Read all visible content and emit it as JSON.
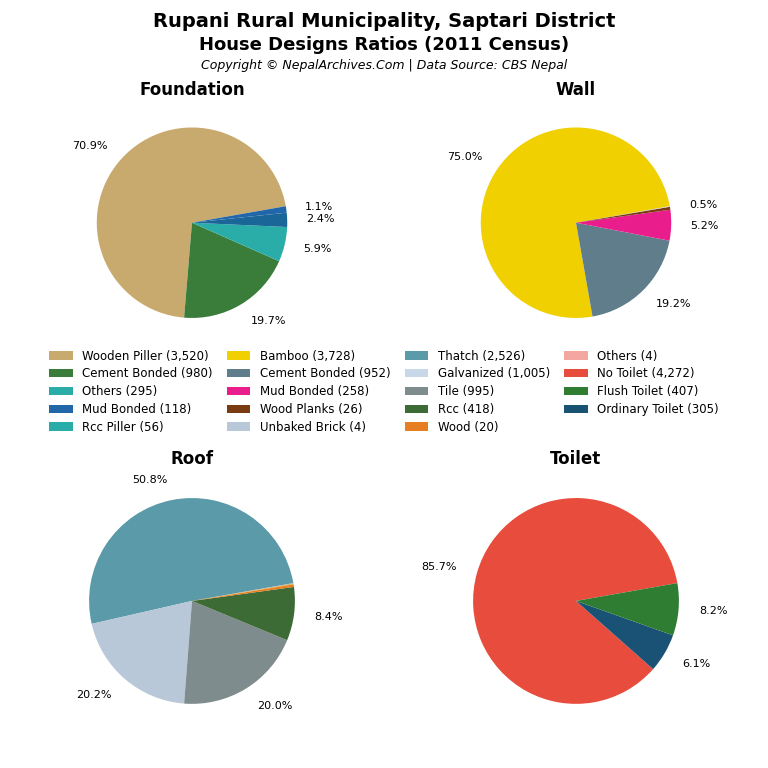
{
  "title": "Rupani Rural Municipality, Saptari District",
  "subtitle": "House Designs Ratios (2011 Census)",
  "caption": "Copyright © NepalArchives.Com | Data Source: CBS Nepal",
  "legend": "center",
  "legend_entries": [
    {
      "name": "Wooden Piller (3,520)",
      "color": "#c8a96e"
    },
    {
      "name": "Cement Bonded (980)",
      "color": "#3a7d3a"
    },
    {
      "name": "Others (295)",
      "color": "#2aada8"
    },
    {
      "name": "Mud Bonded (118)",
      "color": "#2266aa"
    },
    {
      "name": "Rcc Piller (56)",
      "color": "#2aada8"
    },
    {
      "name": "Bamboo (3,728)",
      "color": "#f0d000"
    },
    {
      "name": "Cement Bonded (952)",
      "color": "#607d8b"
    },
    {
      "name": "Mud Bonded (258)",
      "color": "#e91e8c"
    },
    {
      "name": "Wood Planks (26)",
      "color": "#7a3b10"
    },
    {
      "name": "Unbaked Brick (4)",
      "color": "#b8c8d8"
    },
    {
      "name": "Thatch (2,526)",
      "color": "#5b9aa8"
    },
    {
      "name": "Galvanized (1,005)",
      "color": "#c8d8e8"
    },
    {
      "name": "Tile (995)",
      "color": "#7f8c8d"
    },
    {
      "name": "Rcc (418)",
      "color": "#3d6b35"
    },
    {
      "name": "Wood (20)",
      "color": "#e67e22"
    },
    {
      "name": "Others (4)",
      "color": "#f4a6a0"
    },
    {
      "name": "No Toilet (4,272)",
      "color": "#e74c3c"
    },
    {
      "name": "Flush Toilet (407)",
      "color": "#2e7d32"
    },
    {
      "name": "Ordinary Toilet (305)",
      "color": "#1a5276"
    }
  ],
  "chart_data": [
    {
      "type": "pie",
      "title": "Foundation",
      "values": [
        70.9,
        19.7,
        5.9,
        2.4,
        1.1
      ],
      "value_labels": [
        "70.9%",
        "19.7%",
        "5.9%",
        "2.4%",
        "1.1%"
      ],
      "colors": [
        "#c8a96e",
        "#3a7d3a",
        "#2aada8",
        "#1a6699",
        "#2266aa"
      ]
    },
    {
      "type": "pie",
      "title": "Wall",
      "values": [
        75.0,
        19.2,
        5.2,
        0.5,
        0.1
      ],
      "value_labels": [
        "75.0%",
        "19.2%",
        "5.2%",
        "0.5%",
        null
      ],
      "colors": [
        "#f0d000",
        "#607d8b",
        "#e91e8c",
        "#7a3b10",
        "#cccccc"
      ]
    },
    {
      "type": "pie",
      "title": "Roof",
      "values": [
        50.8,
        20.2,
        20.0,
        8.4,
        0.4,
        0.1,
        0.1
      ],
      "value_labels": [
        "50.8%",
        "20.2%",
        "20.0%",
        "8.4%",
        null,
        null,
        null
      ],
      "colors": [
        "#5b9aa8",
        "#b8c8d8",
        "#7f8c8d",
        "#3d6b35",
        "#e67e22",
        "#f0a000",
        "#aaaaaa"
      ]
    },
    {
      "type": "pie",
      "title": "Toilet",
      "values": [
        85.7,
        6.1,
        8.2
      ],
      "value_labels": [
        "85.7%",
        "6.1%",
        "8.2%"
      ],
      "colors": [
        "#e74c3c",
        "#1a5276",
        "#2e7d32"
      ]
    }
  ]
}
